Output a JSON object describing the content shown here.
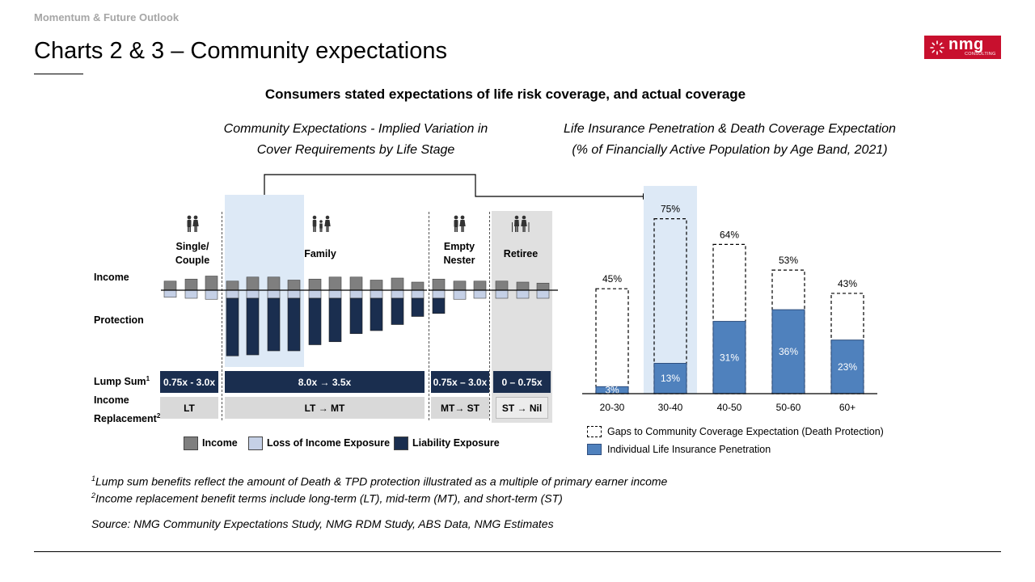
{
  "section": "Momentum & Future Outlook",
  "title": "Charts 2 & 3 – Community expectations",
  "logo": {
    "word": "nmg",
    "sub": "CONSULTING",
    "color": "#c8102e"
  },
  "subheading": "Consumers stated expectations of life risk coverage, and actual coverage",
  "left_panel": {
    "title_line1": "Community Expectations - Implied Variation in",
    "title_line2": "Cover Requirements by Life Stage",
    "row_labels": {
      "income": "Income",
      "protection": "Protection",
      "lump_sum": "Lump Sum",
      "lump_sup": "1",
      "income_rep1": "Income",
      "income_rep2": "Replacement",
      "income_rep_sup": "2"
    },
    "stages": [
      {
        "line1": "Single/",
        "line2": "Couple",
        "icon": "couple-icon"
      },
      {
        "line1": "Family",
        "line2": "",
        "icon": "family-icon"
      },
      {
        "line1": "Empty",
        "line2": "Nester",
        "icon": "couple-icon"
      },
      {
        "line1": "Retiree",
        "line2": "",
        "icon": "elderly-couple-icon"
      }
    ],
    "lump_sum": [
      "0.75x - 3.0x",
      "8.0x → 3.5x",
      "0.75x – 3.0x",
      "0 – 0.75x"
    ],
    "income_replacement": [
      "LT",
      "LT → MT",
      "MT→ ST",
      "ST → Nil"
    ],
    "legend": [
      "Income",
      "Loss of Income Exposure",
      "Liability Exposure"
    ],
    "colors": {
      "income": "#7f7f7f",
      "loss": "#c5d0e6",
      "liability": "#1a2e4f",
      "highlight": "#dde9f6",
      "retiree_bg": "#e0e0e0"
    },
    "bars": [
      {
        "income": 0.45,
        "loss": 0.35,
        "liability": 0
      },
      {
        "income": 0.55,
        "loss": 0.4,
        "liability": 0
      },
      {
        "income": 0.7,
        "loss": 0.45,
        "liability": 0
      },
      {
        "income": 0.45,
        "loss": 0.4,
        "liability": 2.85
      },
      {
        "income": 0.65,
        "loss": 0.4,
        "liability": 2.8
      },
      {
        "income": 0.65,
        "loss": 0.4,
        "liability": 2.6
      },
      {
        "income": 0.5,
        "loss": 0.4,
        "liability": 2.6
      },
      {
        "income": 0.55,
        "loss": 0.4,
        "liability": 2.3
      },
      {
        "income": 0.65,
        "loss": 0.4,
        "liability": 2.15
      },
      {
        "income": 0.65,
        "loss": 0.4,
        "liability": 1.75
      },
      {
        "income": 0.5,
        "loss": 0.4,
        "liability": 1.6
      },
      {
        "income": 0.6,
        "loss": 0.4,
        "liability": 1.3
      },
      {
        "income": 0.4,
        "loss": 0.4,
        "liability": 0.9
      },
      {
        "income": 0.55,
        "loss": 0.4,
        "liability": 0.75
      },
      {
        "income": 0.45,
        "loss": 0.45,
        "liability": 0
      },
      {
        "income": 0.45,
        "loss": 0.4,
        "liability": 0
      },
      {
        "income": 0.45,
        "loss": 0.4,
        "liability": 0
      },
      {
        "income": 0.4,
        "loss": 0.4,
        "liability": 0
      },
      {
        "income": 0.35,
        "loss": 0.4,
        "liability": 0
      }
    ]
  },
  "right_panel": {
    "title_line1": "Life Insurance Penetration & Death Coverage Expectation",
    "title_line2": "(% of Financially Active Population by Age Band, 2021)",
    "legend": [
      "Gaps to Community Coverage Expectation (Death Protection)",
      "Individual Life Insurance Penetration"
    ]
  },
  "chart_data": {
    "type": "bar",
    "categories": [
      "20-30",
      "30-40",
      "40-50",
      "50-60",
      "60+"
    ],
    "series": [
      {
        "name": "Individual Life Insurance Penetration",
        "values": [
          3,
          13,
          31,
          36,
          23
        ],
        "labels": [
          "3%",
          "13%",
          "31%",
          "36%",
          "23%"
        ]
      },
      {
        "name": "Gaps to Community Coverage Expectation (Death Protection)",
        "values": [
          45,
          75,
          64,
          53,
          43
        ],
        "labels": [
          "45%",
          "75%",
          "64%",
          "53%",
          "43%"
        ]
      }
    ],
    "ylim": [
      0,
      80
    ],
    "highlight_category": "30-40",
    "colors": {
      "penetration": "#4f81bd",
      "highlight": "#dde9f6"
    }
  },
  "footnotes": {
    "note1_sup": "1",
    "note1": "Lump sum benefits reflect the amount of Death & TPD protection illustrated as a multiple of primary earner income",
    "note2_sup": "2",
    "note2": "Income replacement benefit terms include long-term (LT), mid-term (MT), and short-term (ST)",
    "source": "Source: NMG Community Expectations Study, NMG RDM Study, ABS Data, NMG Estimates"
  }
}
